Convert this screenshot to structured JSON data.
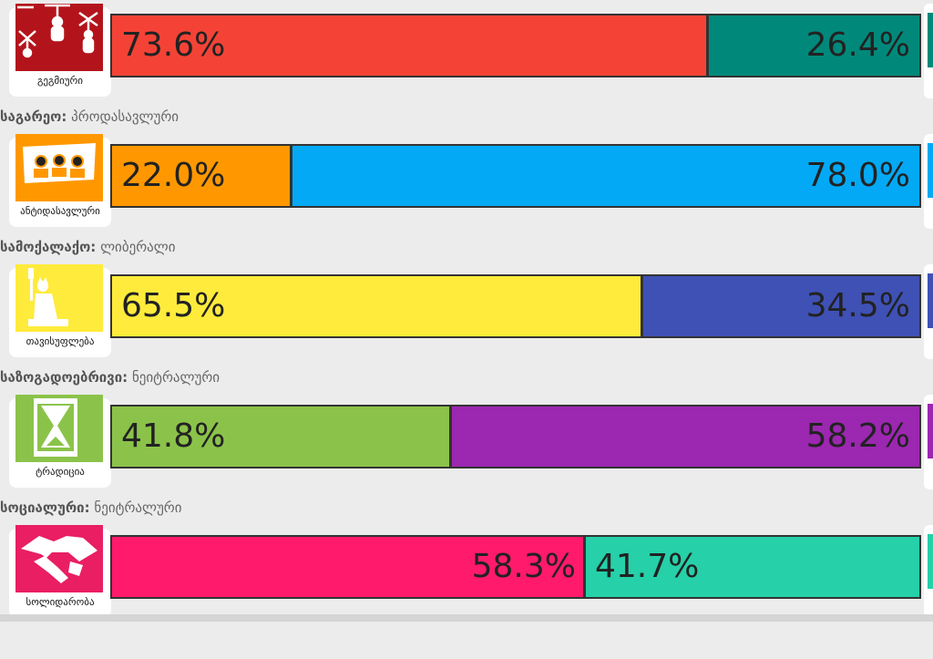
{
  "chart_data": {
    "type": "bar",
    "stacked": "horizontal-100",
    "rows": [
      {
        "axis": "",
        "position": "",
        "icon_name": "puppet-icon",
        "icon_caption": "გეგმიური",
        "icon_color": "#b3141c",
        "left": {
          "value": 73.6,
          "label": "73.6%",
          "color": "#f44336"
        },
        "right": {
          "value": 26.4,
          "label": "26.4%",
          "color": "#00897b"
        },
        "edge_color": "#00897b"
      },
      {
        "axis": "საგარეო:",
        "position": "პროდასავლური",
        "icon_name": "protest-crowd-icon",
        "icon_caption": "ანტიდასავლური",
        "icon_color": "#ff9800",
        "left": {
          "value": 22.0,
          "label": "22.0%",
          "color": "#ff9800"
        },
        "right": {
          "value": 78.0,
          "label": "78.0%",
          "color": "#03a9f4"
        },
        "edge_color": "#03a9f4"
      },
      {
        "axis": "სამოქალაქო:",
        "position": "ლიბერალი",
        "icon_name": "statue-of-liberty-icon",
        "icon_caption": "თავისუფლება",
        "icon_color": "#ffeb3b",
        "left": {
          "value": 65.5,
          "label": "65.5%",
          "color": "#ffeb3b"
        },
        "right": {
          "value": 34.5,
          "label": "34.5%",
          "color": "#3f51b5"
        },
        "edge_color": "#3f51b5"
      },
      {
        "axis": "საზოგადოებრივი:",
        "position": "ნეიტრალური",
        "icon_name": "hourglass-icon",
        "icon_caption": "ტრადიცია",
        "icon_color": "#8bc34a",
        "left": {
          "value": 41.8,
          "label": "41.8%",
          "color": "#8bc34a"
        },
        "right": {
          "value": 58.2,
          "label": "58.2%",
          "color": "#9c27b0"
        },
        "edge_color": "#9c27b0"
      },
      {
        "axis": "სოციალური:",
        "position": "ნეიტრალური",
        "icon_name": "handshake-icon",
        "icon_caption": "სოლიდარობა",
        "icon_color": "#e91e63",
        "left": {
          "value": 58.3,
          "label": "58.3%",
          "color": "#ff1a6b"
        },
        "right": {
          "value": 41.7,
          "label": "41.7%",
          "color": "#26d0a9"
        },
        "edge_color": "#26d0a9",
        "labels_centered": true
      }
    ]
  }
}
